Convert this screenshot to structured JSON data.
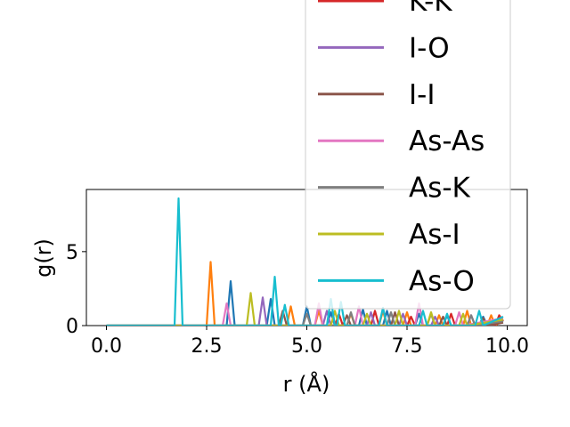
{
  "chart_data": {
    "type": "line",
    "title": "",
    "xlabel": "r (Å)",
    "ylabel": "g(r)",
    "xlim": [
      -0.5,
      10.5
    ],
    "ylim": [
      0,
      9.2
    ],
    "xticks": [
      0.0,
      2.5,
      5.0,
      7.5,
      10.0
    ],
    "xtick_labels": [
      "0.0",
      "2.5",
      "5.0",
      "7.5",
      "10.0"
    ],
    "yticks": [
      0,
      5
    ],
    "ytick_labels": [
      "0",
      "5"
    ],
    "grid": false,
    "legend_position": "top-right (extends above plot area)",
    "series": [
      {
        "name": "",
        "color": "#1f77b4",
        "x": [
          0,
          3.0,
          3.1,
          3.2,
          4.0,
          4.1,
          4.2,
          4.9,
          5.0,
          5.1,
          5.5,
          5.6,
          5.7,
          6.3,
          6.4,
          6.5,
          6.9,
          7.0,
          7.1,
          7.7,
          7.8,
          7.9,
          8.4,
          8.5,
          8.6,
          9.3,
          9.4,
          9.5,
          9.9
        ],
        "y": [
          0,
          0,
          3.0,
          0,
          0,
          1.8,
          0,
          0,
          1.3,
          0,
          0,
          0.9,
          0,
          0,
          1.1,
          0,
          0,
          1.0,
          0,
          0,
          0.8,
          0,
          0,
          0.7,
          0,
          0,
          0.6,
          0,
          0.3
        ]
      },
      {
        "name": "",
        "color": "#ff7f0e",
        "x": [
          0,
          2.5,
          2.6,
          2.7,
          4.5,
          4.6,
          4.7,
          5.2,
          5.3,
          5.4,
          6.0,
          6.1,
          6.2,
          6.8,
          6.9,
          7.0,
          7.4,
          7.5,
          7.6,
          8.2,
          8.3,
          8.4,
          8.9,
          9.0,
          9.1,
          9.5,
          9.6,
          9.7,
          9.9
        ],
        "y": [
          0,
          0,
          4.3,
          0,
          0,
          1.3,
          0,
          0,
          1.0,
          0,
          0,
          0.8,
          0,
          0,
          1.0,
          0,
          0,
          0.9,
          0,
          0,
          0.7,
          0,
          0,
          1.0,
          0,
          0,
          0.7,
          0,
          0.4
        ]
      },
      {
        "name": "K-K",
        "color": "#d62728",
        "x": [
          0,
          5.7,
          5.8,
          5.9,
          6.6,
          6.7,
          6.8,
          7.5,
          7.6,
          7.7,
          8.5,
          8.6,
          8.7,
          9.7,
          9.8,
          9.9
        ],
        "y": [
          0,
          0,
          0.8,
          0,
          0,
          1.0,
          0,
          0,
          0.6,
          0,
          0,
          0.8,
          0,
          0,
          0.7,
          0.3
        ]
      },
      {
        "name": "I-O",
        "color": "#9467bd",
        "x": [
          0,
          3.8,
          3.9,
          4.0,
          5.4,
          5.5,
          5.6,
          6.5,
          6.6,
          6.7,
          7.3,
          7.4,
          7.5,
          8.1,
          8.2,
          8.3,
          9.0,
          9.1,
          9.2,
          9.9
        ],
        "y": [
          0,
          0,
          1.9,
          0,
          0,
          1.0,
          0,
          0,
          0.9,
          0,
          0,
          0.8,
          0,
          0,
          0.6,
          0,
          0,
          0.7,
          0,
          0.4
        ]
      },
      {
        "name": "I-I",
        "color": "#8c564b",
        "x": [
          0,
          4.3,
          4.4,
          4.5,
          5.9,
          6.0,
          6.1,
          7.1,
          7.2,
          7.3,
          8.3,
          8.4,
          8.5,
          9.3,
          9.4,
          9.5,
          9.9
        ],
        "y": [
          0,
          0,
          1.0,
          0,
          0,
          0.7,
          0,
          0,
          0.9,
          0,
          0,
          0.6,
          0,
          0,
          0.5,
          0,
          0.2
        ]
      },
      {
        "name": "As-As",
        "color": "#e377c2",
        "x": [
          0,
          2.9,
          3.0,
          3.1,
          5.2,
          5.3,
          5.4,
          6.2,
          6.3,
          6.4,
          7.7,
          7.8,
          7.9,
          8.7,
          8.8,
          8.9,
          9.9
        ],
        "y": [
          0,
          0,
          1.5,
          0,
          0,
          1.5,
          0,
          0,
          1.3,
          0,
          0,
          1.5,
          0,
          0,
          0.9,
          0,
          0.5
        ]
      },
      {
        "name": "As-K",
        "color": "#7f7f7f",
        "x": [
          0,
          4.9,
          5.0,
          5.1,
          6.0,
          6.1,
          6.2,
          7.0,
          7.1,
          7.2,
          8.0,
          8.1,
          8.2,
          9.0,
          9.1,
          9.2,
          9.9
        ],
        "y": [
          0,
          0,
          0.8,
          0,
          0,
          0.9,
          0,
          0,
          0.9,
          0,
          0,
          0.8,
          0,
          0,
          0.7,
          0,
          0.3
        ]
      },
      {
        "name": "As-I",
        "color": "#bcbd22",
        "x": [
          0,
          3.5,
          3.6,
          3.7,
          5.6,
          5.7,
          5.8,
          6.4,
          6.5,
          6.6,
          7.2,
          7.3,
          7.4,
          8.0,
          8.1,
          8.2,
          8.8,
          8.9,
          9.0,
          9.9
        ],
        "y": [
          0,
          0,
          2.2,
          0,
          0,
          1.0,
          0,
          0,
          0.8,
          0,
          0,
          1.0,
          0,
          0,
          0.9,
          0,
          0,
          0.8,
          0,
          0.4
        ]
      },
      {
        "name": "As-O",
        "color": "#17becf",
        "x": [
          0,
          1.7,
          1.8,
          1.9,
          4.1,
          4.2,
          4.3,
          4.35,
          4.45,
          4.55,
          5.5,
          5.6,
          5.7,
          5.75,
          5.85,
          5.95,
          6.8,
          6.9,
          7.0,
          7.8,
          7.9,
          8.0,
          8.4,
          8.5,
          8.6,
          9.2,
          9.3,
          9.4,
          9.9
        ],
        "y": [
          0,
          0,
          8.6,
          0,
          0,
          3.3,
          0,
          0,
          1.4,
          0,
          0,
          1.8,
          0,
          0,
          1.6,
          0,
          0,
          1.2,
          0,
          0,
          1.0,
          0,
          0,
          0.8,
          0,
          0,
          1.0,
          0,
          0.6
        ]
      }
    ]
  }
}
